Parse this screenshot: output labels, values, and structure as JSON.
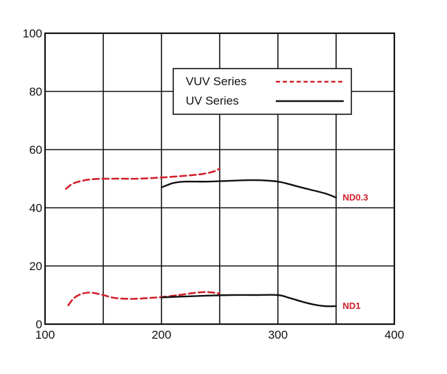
{
  "chart_data": {
    "type": "line",
    "xlim": [
      100,
      400
    ],
    "ylim": [
      0,
      100
    ],
    "x_major_ticks": [
      100,
      200,
      300,
      400
    ],
    "x_grid": [
      100,
      150,
      200,
      250,
      300,
      350,
      400
    ],
    "y_ticks": [
      0,
      20,
      40,
      60,
      80,
      100
    ],
    "grid": true,
    "legend": {
      "placement": "top-center",
      "entries": [
        {
          "label": "VUV Series",
          "style": "dashed",
          "color": "#d0202a"
        },
        {
          "label": "UV Series",
          "style": "solid",
          "color": "#111111"
        }
      ]
    },
    "series": [
      {
        "legend_ref": 0,
        "group": "ND0.3",
        "x": [
          118,
          125,
          140,
          160,
          180,
          200,
          220,
          235,
          245,
          250
        ],
        "y": [
          46.5,
          48.5,
          49.8,
          50,
          50,
          50.4,
          51,
          51.6,
          52.5,
          53.5
        ]
      },
      {
        "legend_ref": 1,
        "group": "ND0.3",
        "x": [
          200,
          210,
          220,
          240,
          260,
          280,
          300,
          320,
          340,
          350
        ],
        "y": [
          47,
          48.5,
          49,
          49,
          49.3,
          49.5,
          49,
          47,
          45,
          43.5
        ]
      },
      {
        "legend_ref": 0,
        "group": "ND1",
        "x": [
          120,
          125,
          132,
          140,
          150,
          160,
          175,
          190,
          200,
          215,
          230,
          240,
          250
        ],
        "y": [
          6.5,
          9,
          10.5,
          10.8,
          10,
          9,
          8.7,
          9,
          9.3,
          10,
          10.8,
          11,
          10.5
        ]
      },
      {
        "legend_ref": 1,
        "group": "ND1",
        "x": [
          200,
          220,
          240,
          260,
          280,
          300,
          310,
          320,
          330,
          340,
          350
        ],
        "y": [
          9.2,
          9.5,
          9.8,
          10,
          10,
          10,
          9,
          7.8,
          6.8,
          6.2,
          6.2
        ]
      }
    ],
    "annotations": [
      {
        "text": "ND0.3",
        "x": 352,
        "y": 43.5,
        "color": "#d0202a"
      },
      {
        "text": "ND1",
        "x": 352,
        "y": 6.2,
        "color": "#d0202a"
      }
    ]
  }
}
